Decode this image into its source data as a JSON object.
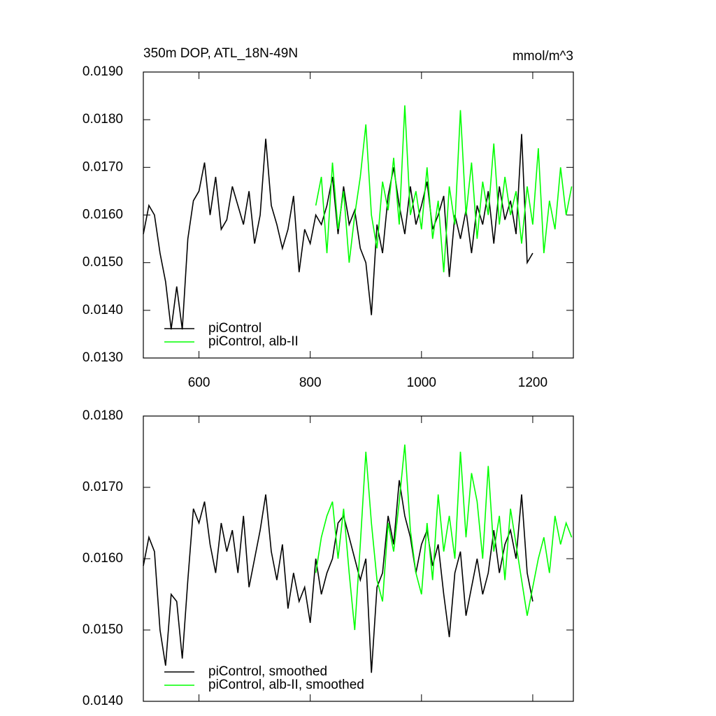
{
  "chart_data": [
    {
      "type": "line",
      "title": "350m DOP, ATL_18N-49N",
      "right_title": "mmol/m^3",
      "xlim": [
        500,
        1273
      ],
      "xticks": [
        600,
        800,
        1000,
        1200
      ],
      "ylim": [
        0.013,
        0.019
      ],
      "yticks": [
        {
          "value": 0.013,
          "label": "0.0130"
        },
        {
          "value": 0.014,
          "label": "0.0140"
        },
        {
          "value": 0.015,
          "label": "0.0150"
        },
        {
          "value": 0.016,
          "label": "0.0160"
        },
        {
          "value": 0.017,
          "label": "0.0170"
        },
        {
          "value": 0.018,
          "label": "0.0180"
        },
        {
          "value": 0.019,
          "label": "0.0190"
        }
      ],
      "series": [
        {
          "name": "piControl",
          "color": "#000000",
          "x": [
            500,
            510,
            520,
            530,
            540,
            550,
            560,
            570,
            580,
            590,
            600,
            610,
            620,
            630,
            640,
            650,
            660,
            670,
            680,
            690,
            700,
            710,
            720,
            730,
            740,
            750,
            760,
            770,
            780,
            790,
            800,
            810,
            820,
            830,
            840,
            850,
            860,
            870,
            880,
            890,
            900,
            910,
            920,
            930,
            940,
            950,
            960,
            970,
            980,
            990,
            1000,
            1010,
            1020,
            1030,
            1040,
            1050,
            1060,
            1070,
            1080,
            1090,
            1100,
            1110,
            1120,
            1130,
            1140,
            1150,
            1160,
            1170,
            1180,
            1190,
            1200
          ],
          "values": [
            0.0156,
            0.0162,
            0.016,
            0.0152,
            0.0146,
            0.0136,
            0.0145,
            0.0136,
            0.0155,
            0.0163,
            0.0165,
            0.0171,
            0.016,
            0.0168,
            0.0157,
            0.0159,
            0.0166,
            0.0162,
            0.0158,
            0.0165,
            0.0154,
            0.016,
            0.0176,
            0.0162,
            0.0158,
            0.0153,
            0.0157,
            0.0164,
            0.0148,
            0.0157,
            0.0154,
            0.016,
            0.0158,
            0.0162,
            0.0168,
            0.0156,
            0.0166,
            0.0158,
            0.0161,
            0.0153,
            0.015,
            0.0139,
            0.0158,
            0.0152,
            0.0164,
            0.017,
            0.0162,
            0.0156,
            0.0166,
            0.0158,
            0.0162,
            0.0167,
            0.0157,
            0.016,
            0.0164,
            0.0147,
            0.016,
            0.0155,
            0.0161,
            0.0152,
            0.0162,
            0.0158,
            0.0165,
            0.0154,
            0.0166,
            0.0159,
            0.0163,
            0.0156,
            0.0177,
            0.015,
            0.0152
          ]
        },
        {
          "name": "piControl, alb-II",
          "color": "#00ff00",
          "x": [
            810,
            820,
            830,
            840,
            850,
            860,
            870,
            880,
            890,
            900,
            910,
            920,
            930,
            940,
            950,
            960,
            970,
            980,
            990,
            1000,
            1010,
            1020,
            1030,
            1040,
            1050,
            1060,
            1070,
            1080,
            1090,
            1100,
            1110,
            1120,
            1130,
            1140,
            1150,
            1160,
            1170,
            1180,
            1190,
            1200,
            1210,
            1220,
            1230,
            1240,
            1250,
            1260,
            1270
          ],
          "values": [
            0.0162,
            0.0168,
            0.0152,
            0.0171,
            0.0157,
            0.0165,
            0.015,
            0.016,
            0.0168,
            0.0179,
            0.016,
            0.0153,
            0.0167,
            0.0161,
            0.0172,
            0.0158,
            0.0183,
            0.016,
            0.0165,
            0.0157,
            0.017,
            0.0155,
            0.0163,
            0.0148,
            0.0166,
            0.0158,
            0.0182,
            0.016,
            0.0171,
            0.0155,
            0.0167,
            0.016,
            0.0175,
            0.0158,
            0.0168,
            0.016,
            0.0165,
            0.0154,
            0.0166,
            0.0158,
            0.0174,
            0.0152,
            0.0163,
            0.0157,
            0.017,
            0.016,
            0.0166
          ]
        }
      ]
    },
    {
      "type": "line",
      "xlim": [
        500,
        1273
      ],
      "xticks": [
        600,
        800,
        1000,
        1200
      ],
      "ylim": [
        0.014,
        0.018
      ],
      "yticks": [
        {
          "value": 0.014,
          "label": "0.0140"
        },
        {
          "value": 0.015,
          "label": "0.0150"
        },
        {
          "value": 0.016,
          "label": "0.0160"
        },
        {
          "value": 0.017,
          "label": "0.0170"
        },
        {
          "value": 0.018,
          "label": "0.0180"
        }
      ],
      "series": [
        {
          "name": "piControl, smoothed",
          "color": "#000000",
          "x": [
            500,
            510,
            520,
            530,
            540,
            550,
            560,
            570,
            580,
            590,
            600,
            610,
            620,
            630,
            640,
            650,
            660,
            670,
            680,
            690,
            700,
            710,
            720,
            730,
            740,
            750,
            760,
            770,
            780,
            790,
            800,
            810,
            820,
            830,
            840,
            850,
            860,
            870,
            880,
            890,
            900,
            910,
            920,
            930,
            940,
            950,
            960,
            970,
            980,
            990,
            1000,
            1010,
            1020,
            1030,
            1040,
            1050,
            1060,
            1070,
            1080,
            1090,
            1100,
            1110,
            1120,
            1130,
            1140,
            1150,
            1160,
            1170,
            1180,
            1190,
            1200
          ],
          "values": [
            0.0159,
            0.0163,
            0.0161,
            0.015,
            0.0145,
            0.0155,
            0.0154,
            0.0146,
            0.0157,
            0.0167,
            0.0165,
            0.0168,
            0.0162,
            0.0158,
            0.0165,
            0.0161,
            0.0164,
            0.0158,
            0.0166,
            0.0156,
            0.016,
            0.0164,
            0.0169,
            0.0161,
            0.0157,
            0.0162,
            0.0153,
            0.0158,
            0.0154,
            0.0156,
            0.0151,
            0.016,
            0.0155,
            0.0158,
            0.016,
            0.0165,
            0.0166,
            0.0163,
            0.016,
            0.0157,
            0.016,
            0.0144,
            0.0156,
            0.0158,
            0.0166,
            0.0162,
            0.0171,
            0.0166,
            0.0163,
            0.0158,
            0.0162,
            0.0164,
            0.0159,
            0.0162,
            0.0155,
            0.0149,
            0.0158,
            0.0161,
            0.0152,
            0.0156,
            0.016,
            0.0155,
            0.0158,
            0.0164,
            0.0158,
            0.0162,
            0.0164,
            0.016,
            0.0169,
            0.0158,
            0.0154
          ]
        },
        {
          "name": "piControl, alb-II, smoothed",
          "color": "#00ff00",
          "x": [
            810,
            820,
            830,
            840,
            850,
            860,
            870,
            880,
            890,
            900,
            910,
            920,
            930,
            940,
            950,
            960,
            970,
            980,
            990,
            1000,
            1010,
            1020,
            1030,
            1040,
            1050,
            1060,
            1070,
            1080,
            1090,
            1100,
            1110,
            1120,
            1130,
            1140,
            1150,
            1160,
            1170,
            1180,
            1190,
            1200,
            1210,
            1220,
            1230,
            1240,
            1250,
            1260,
            1270
          ],
          "values": [
            0.0158,
            0.0163,
            0.0166,
            0.0168,
            0.016,
            0.0167,
            0.0158,
            0.015,
            0.0162,
            0.0175,
            0.0165,
            0.0157,
            0.0154,
            0.0165,
            0.0161,
            0.0168,
            0.0176,
            0.0164,
            0.0158,
            0.0155,
            0.0165,
            0.0157,
            0.0169,
            0.0161,
            0.0166,
            0.016,
            0.0175,
            0.0163,
            0.0172,
            0.0168,
            0.016,
            0.0173,
            0.0161,
            0.0166,
            0.0157,
            0.0167,
            0.0162,
            0.0157,
            0.0152,
            0.0156,
            0.016,
            0.0163,
            0.0158,
            0.0166,
            0.0162,
            0.0165,
            0.0163
          ]
        }
      ]
    }
  ]
}
